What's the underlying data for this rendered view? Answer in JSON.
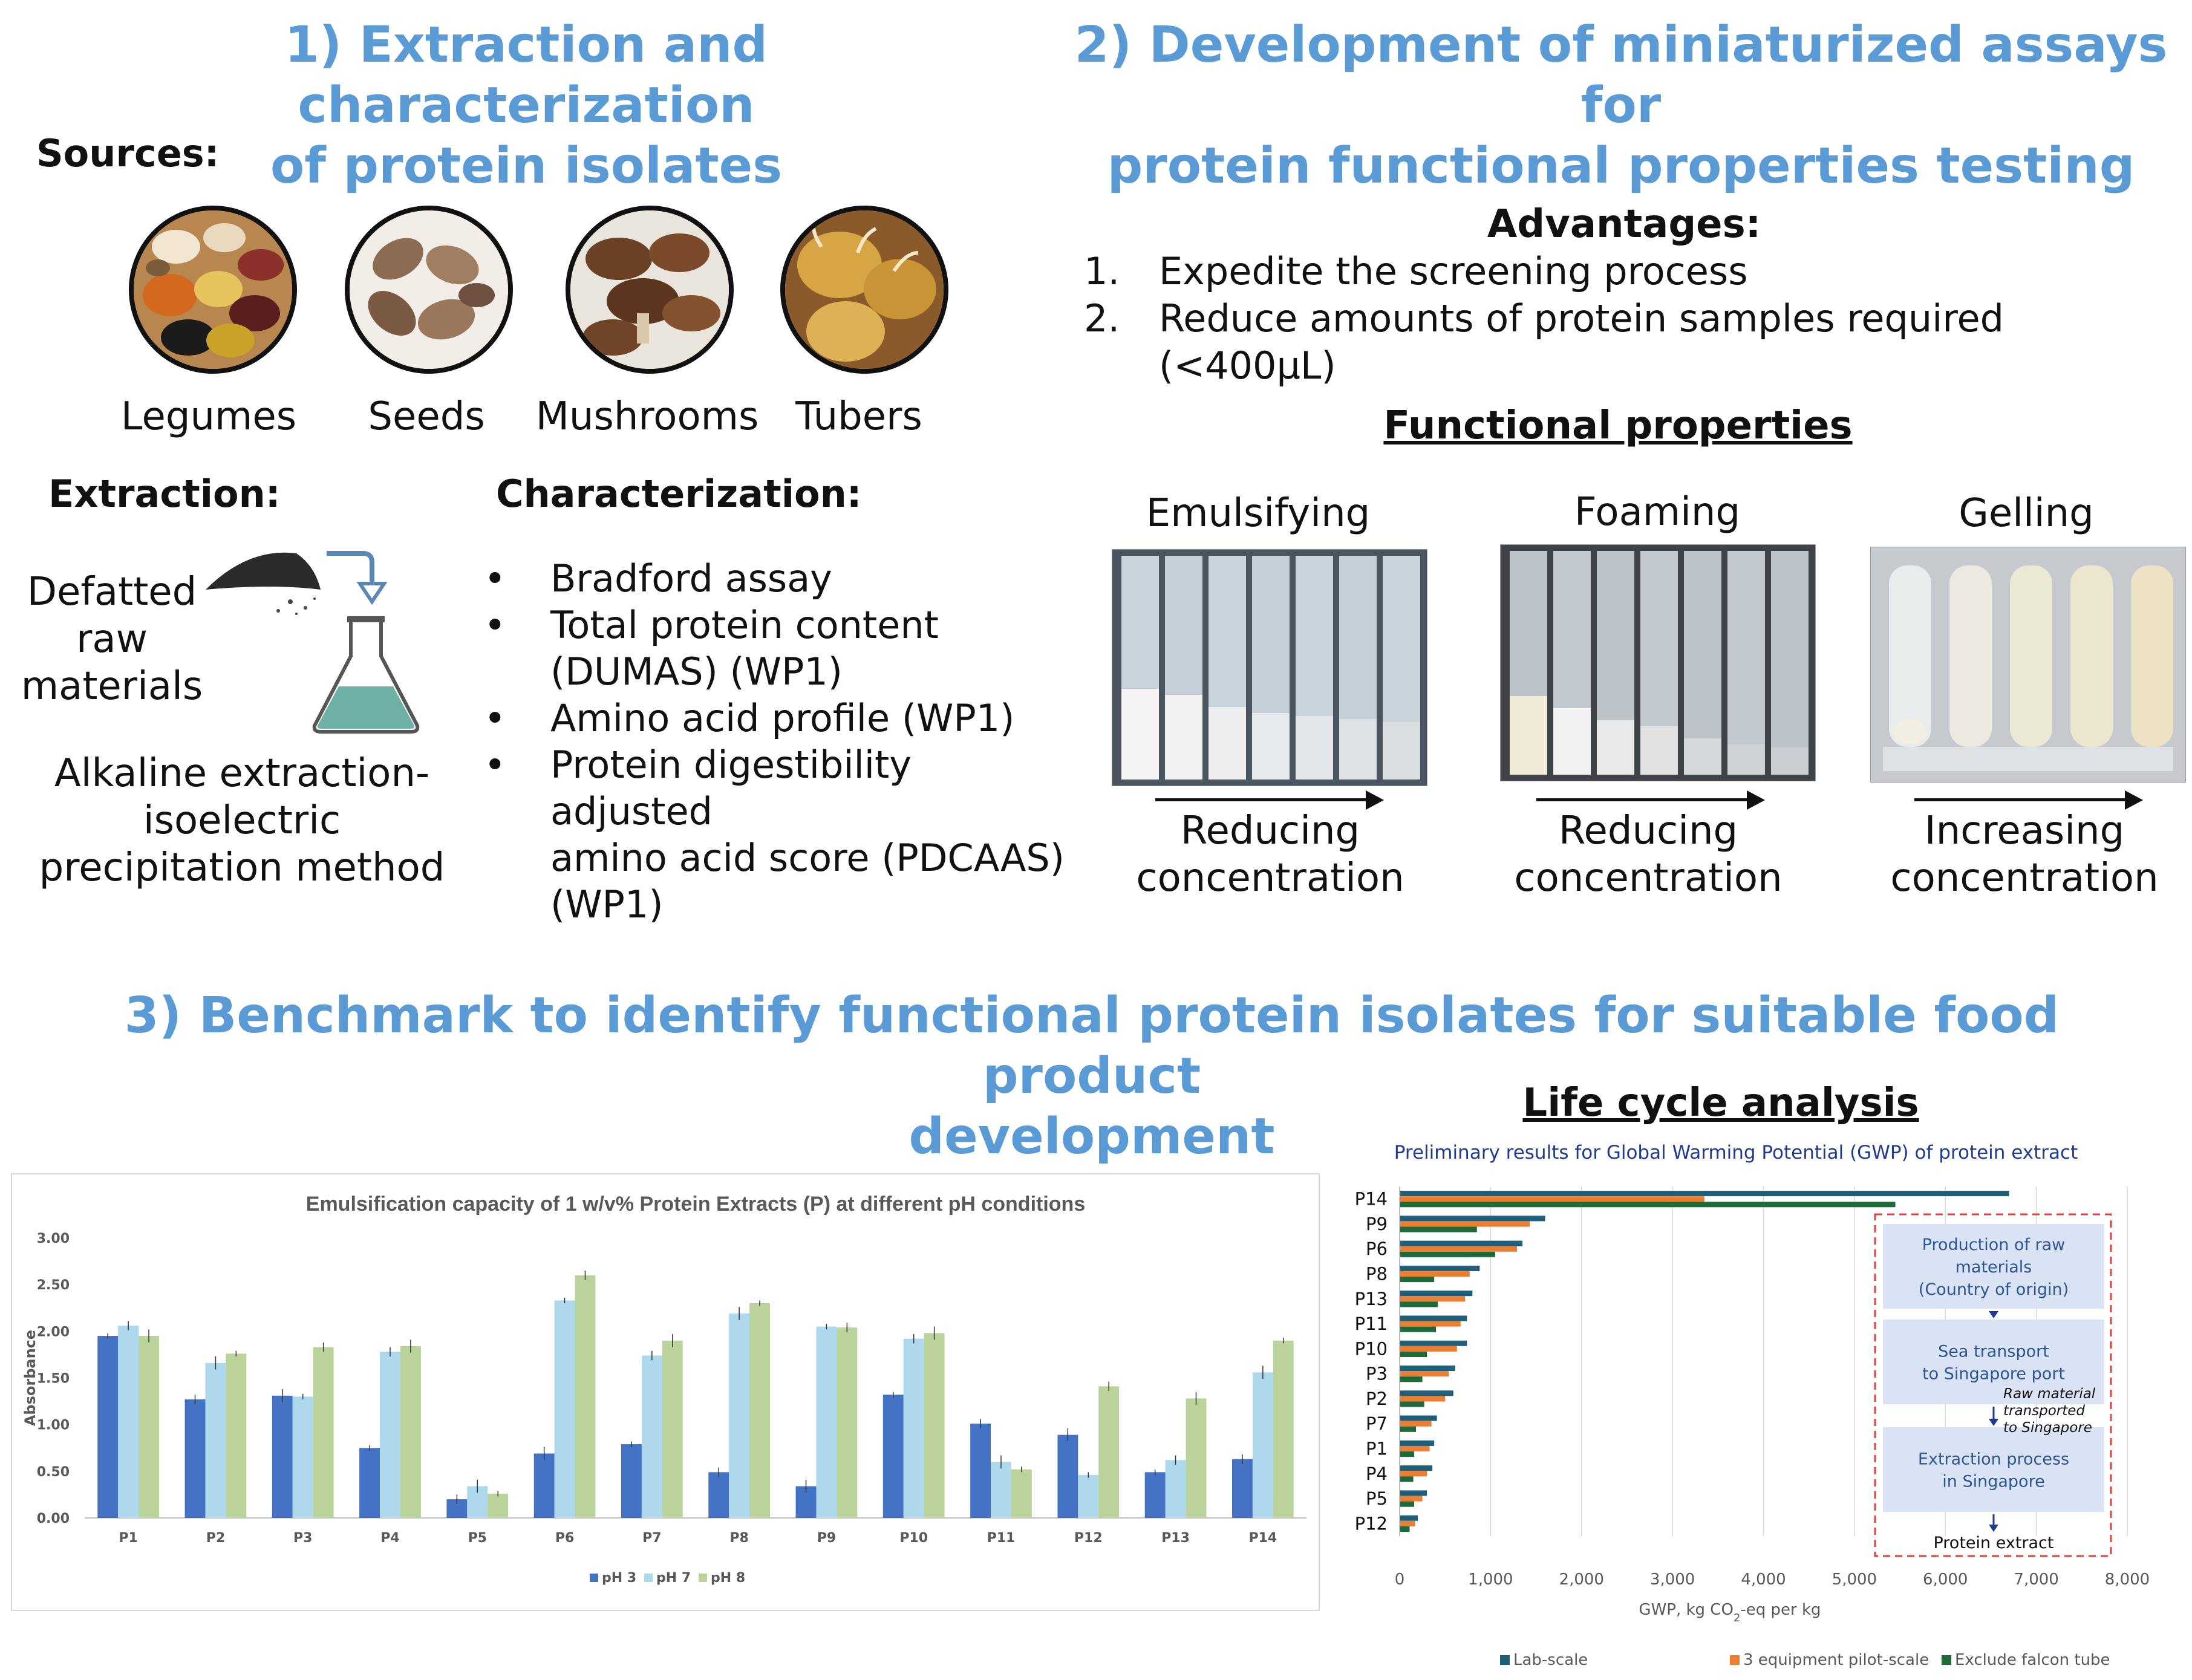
{
  "section1": {
    "title_line1": "1) Extraction and characterization",
    "title_line2": "of protein isolates",
    "sources_label": "Sources:",
    "sources": [
      {
        "icon": "legumes-photo",
        "label": "Legumes"
      },
      {
        "icon": "seeds-photo",
        "label": "Seeds"
      },
      {
        "icon": "mushrooms-photo",
        "label": "Mushrooms"
      },
      {
        "icon": "tubers-photo",
        "label": "Tubers"
      }
    ],
    "extraction_label": "Extraction:",
    "defatted_lines": [
      "Defatted",
      "raw",
      "materials"
    ],
    "method_lines": [
      "Alkaline extraction-",
      "isoelectric",
      "precipitation method"
    ],
    "characterization_label": "Characterization:",
    "characterization_items": [
      [
        "Bradford assay"
      ],
      [
        "Total protein content",
        "(DUMAS) (WP1)"
      ],
      [
        "Amino acid profile (WP1)"
      ],
      [
        "Protein digestibility adjusted",
        "amino acid score (PDCAAS)",
        "(WP1)"
      ]
    ],
    "bullet": "•"
  },
  "section2": {
    "title_line1": "2) Development of miniaturized assays for",
    "title_line2": "protein functional properties testing",
    "advantages_label": "Advantages:",
    "advantages": [
      {
        "num": "1.",
        "text": "Expedite the screening process"
      },
      {
        "num": "2.",
        "text": "Reduce amounts of protein samples required (<400µL)"
      }
    ],
    "functional_label": "Functional properties",
    "properties": [
      {
        "name": "Emulsifying",
        "caption_line1": "Reducing",
        "caption_line2": "concentration"
      },
      {
        "name": "Foaming",
        "caption_line1": "Reducing",
        "caption_line2": "concentration"
      },
      {
        "name": "Gelling",
        "caption_line1": "Increasing",
        "caption_line2": "concentration"
      }
    ]
  },
  "section3": {
    "title_line1": "3) Benchmark to identify functional protein isolates for suitable food product",
    "title_line2": "development",
    "lca_label": "Life cycle analysis"
  },
  "chart_data": [
    {
      "type": "bar",
      "title": "Emulsification capacity of 1 w/v% Protein Extracts (P) at different pH conditions",
      "xlabel": "",
      "ylabel": "Absorbance",
      "ylim": [
        0,
        3.0
      ],
      "yticks": [
        "0.00",
        "0.50",
        "1.00",
        "1.50",
        "2.00",
        "2.50",
        "3.00"
      ],
      "categories": [
        "P1",
        "P2",
        "P3",
        "P4",
        "P5",
        "P6",
        "P7",
        "P8",
        "P9",
        "P10",
        "P11",
        "P12",
        "P13",
        "P14"
      ],
      "series": [
        {
          "name": "pH 3",
          "color": "#4472c4",
          "values": [
            1.95,
            1.27,
            1.31,
            0.75,
            0.2,
            0.69,
            0.79,
            0.49,
            0.34,
            1.32,
            1.01,
            0.89,
            0.49,
            0.63
          ]
        },
        {
          "name": "pH 7",
          "color": "#aed8ec",
          "values": [
            2.06,
            1.66,
            1.3,
            1.78,
            0.34,
            2.33,
            1.74,
            2.19,
            2.05,
            1.92,
            0.6,
            0.46,
            0.62,
            1.56
          ]
        },
        {
          "name": "pH 8",
          "color": "#bad39a",
          "values": [
            1.95,
            1.76,
            1.83,
            1.84,
            0.26,
            2.6,
            1.9,
            2.3,
            2.04,
            1.98,
            0.52,
            1.41,
            1.28,
            1.9
          ]
        }
      ],
      "legend": "bottom"
    },
    {
      "type": "bar",
      "orientation": "horizontal",
      "title": "Preliminary results for Global Warming Potential (GWP) of protein extract",
      "xlabel_main": "GWP, kg CO",
      "xlabel_sub": "2",
      "xlabel_tail": "-eq per kg",
      "xlim": [
        0,
        8000
      ],
      "xticks": [
        "0",
        "1,000",
        "2,000",
        "3,000",
        "4,000",
        "5,000",
        "6,000",
        "7,000",
        "8,000"
      ],
      "categories": [
        "P14",
        "P9",
        "P6",
        "P8",
        "P13",
        "P11",
        "P10",
        "P3",
        "P2",
        "P7",
        "P1",
        "P4",
        "P5",
        "P12"
      ],
      "series": [
        {
          "name": "Lab-scale",
          "color": "#1f5f7a",
          "values": [
            6700,
            1600,
            1350,
            880,
            800,
            740,
            740,
            610,
            590,
            410,
            380,
            360,
            300,
            200
          ]
        },
        {
          "name": "3 equipment pilot-scale",
          "color": "#ed7d31",
          "values": [
            3350,
            1430,
            1290,
            770,
            720,
            670,
            630,
            540,
            500,
            350,
            330,
            300,
            250,
            170
          ]
        },
        {
          "name": "Exclude falcon tube",
          "color": "#1e6b3a",
          "values": [
            5450,
            850,
            1050,
            380,
            420,
            400,
            300,
            250,
            270,
            180,
            160,
            150,
            160,
            110
          ]
        }
      ],
      "legend": "bottom",
      "inset_steps": [
        {
          "lines": [
            "Production of raw",
            "materials",
            "(Country of origin)"
          ]
        },
        {
          "lines": [
            "Sea transport",
            "to Singapore port"
          ]
        },
        {
          "lines": [
            "Extraction process",
            "in Singapore"
          ]
        }
      ],
      "inset_note_lines": [
        "Raw material",
        "transported",
        "to Singapore"
      ],
      "inset_final": "Protein extract"
    }
  ]
}
